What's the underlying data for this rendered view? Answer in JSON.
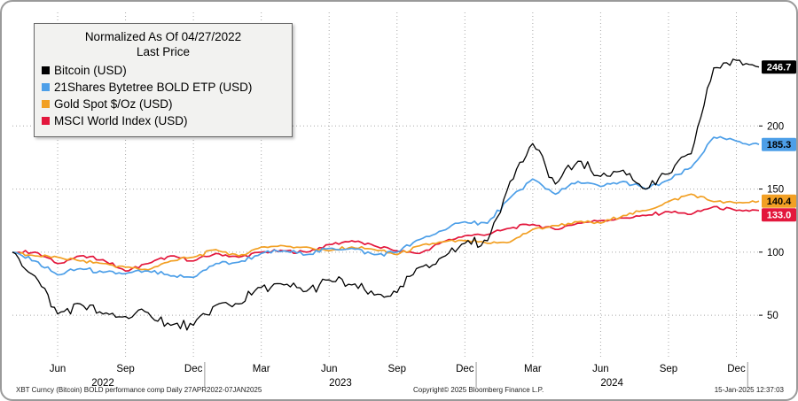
{
  "legend": {
    "title": "Normalized As Of 04/27/2022",
    "subtitle": "Last Price",
    "items": [
      {
        "id": "bitcoin",
        "label": "Bitcoin (USD)",
        "color": "#000000"
      },
      {
        "id": "bold-etp",
        "label": "21Shares Bytetree BOLD ETP (USD)",
        "color": "#4d9fe8"
      },
      {
        "id": "gold",
        "label": "Gold Spot $/Oz (USD)",
        "color": "#f2a024"
      },
      {
        "id": "msci",
        "label": "MSCI World Index (USD)",
        "color": "#e3173c"
      }
    ]
  },
  "axis": {
    "badges": [
      {
        "text": "246.7",
        "value": 246.7,
        "bg": "#000000",
        "fg": "#ffffff"
      },
      {
        "text": "185.3",
        "value": 185.3,
        "bg": "#4d9fe8",
        "fg": "#000000"
      },
      {
        "text": "140.4",
        "value": 140.4,
        "bg": "#f2a024",
        "fg": "#000000"
      },
      {
        "text": "133.0",
        "value": 133.0,
        "bg": "#e3173c",
        "fg": "#ffffff"
      }
    ]
  },
  "footer": {
    "left": "XBT Curncy (Bitcoin) BOLD performance comp  Daily 27APR2022-07JAN2025",
    "center": "Copyright© 2025 Bloomberg Finance L.P.",
    "right": "15-Jan-2025 12:37:03"
  },
  "chart_data": {
    "type": "line",
    "title": "Normalized As Of 04/27/2022",
    "subtitle": "Last Price",
    "grid": "dotted",
    "legend_position": "top-left",
    "ylim": [
      15,
      290
    ],
    "y_ticks": [
      50,
      100,
      150,
      200
    ],
    "x": [
      "2022-04",
      "2022-05",
      "2022-06",
      "2022-07",
      "2022-08",
      "2022-09",
      "2022-10",
      "2022-11",
      "2022-12",
      "2023-01",
      "2023-02",
      "2023-03",
      "2023-04",
      "2023-05",
      "2023-06",
      "2023-07",
      "2023-08",
      "2023-09",
      "2023-10",
      "2023-11",
      "2023-12",
      "2024-01",
      "2024-02",
      "2024-03",
      "2024-04",
      "2024-05",
      "2024-06",
      "2024-07",
      "2024-08",
      "2024-09",
      "2024-10",
      "2024-11",
      "2024-12",
      "2025-01"
    ],
    "x_tick_labels": [
      "Jun",
      "Sep",
      "Dec",
      "Mar",
      "Jun",
      "Sep",
      "Dec",
      "Mar",
      "Jun",
      "Sep",
      "Dec"
    ],
    "x_tick_month_indices": [
      2,
      5,
      8,
      11,
      14,
      17,
      20,
      23,
      26,
      29,
      32
    ],
    "year_dividers_month_indices": [
      8.5,
      20.5,
      32.5
    ],
    "year_labels": [
      {
        "label": "2022",
        "center_month_index": 4.0
      },
      {
        "label": "2023",
        "center_month_index": 14.5
      },
      {
        "label": "2024",
        "center_month_index": 26.5
      }
    ],
    "series": [
      {
        "name": "MSCI World Index (USD)",
        "color": "#e3173c",
        "last_price": 133.0,
        "values": [
          100,
          100,
          91,
          97,
          94,
          85,
          91,
          97,
          93,
          99,
          96,
          100,
          101,
          100,
          106,
          109,
          105,
          101,
          99,
          108,
          113,
          114,
          119,
          122,
          118,
          123,
          125,
          127,
          129,
          132,
          130,
          136,
          133,
          133.0
        ]
      },
      {
        "name": "Gold Spot $/Oz (USD)",
        "color": "#f2a024",
        "last_price": 140.4,
        "values": [
          100,
          97,
          96,
          93,
          91,
          88,
          86,
          93,
          96,
          102,
          97,
          104,
          105,
          104,
          101,
          104,
          102,
          98,
          105,
          108,
          109,
          107,
          108,
          118,
          121,
          124,
          123,
          129,
          133,
          140,
          146,
          140,
          139,
          140.4
        ]
      },
      {
        "name": "21Shares Bytetree BOLD ETP (USD)",
        "color": "#4d9fe8",
        "last_price": 185.3,
        "values": [
          100,
          93,
          82,
          87,
          84,
          83,
          85,
          81,
          80,
          91,
          92,
          99,
          101,
          98,
          103,
          103,
          98,
          100,
          110,
          117,
          124,
          123,
          143,
          158,
          146,
          156,
          152,
          156,
          150,
          157,
          167,
          191,
          188,
          185.3
        ]
      },
      {
        "name": "Bitcoin (USD)",
        "color": "#000000",
        "last_price": 246.7,
        "values": [
          100,
          81,
          51,
          59,
          51,
          49,
          52,
          42,
          42,
          58,
          59,
          72,
          74,
          69,
          78,
          74,
          66,
          68,
          88,
          96,
          107,
          109,
          156,
          186,
          154,
          172,
          160,
          165,
          150,
          162,
          178,
          246,
          252,
          246.7
        ]
      }
    ]
  }
}
